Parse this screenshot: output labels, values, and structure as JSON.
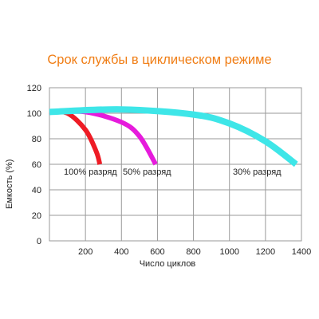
{
  "chart_data": {
    "type": "line",
    "title": "Срок службы в циклическом режиме",
    "xlabel": "Число циклов",
    "ylabel": "Емкость (%)",
    "xlim": [
      0,
      1400
    ],
    "ylim": [
      0,
      120
    ],
    "xticks": [
      200,
      400,
      600,
      800,
      1000,
      1200,
      1400
    ],
    "yticks": [
      0,
      20,
      40,
      60,
      80,
      100,
      120
    ],
    "grid": true,
    "series": [
      {
        "name": "100% разряд",
        "color": "#ee1c25",
        "x": [
          0,
          100,
          200,
          260,
          280
        ],
        "y": [
          101,
          100,
          87,
          70,
          60
        ]
      },
      {
        "name": "50% разряд",
        "color": "#e61bdc",
        "x": [
          0,
          200,
          400,
          500,
          590
        ],
        "y": [
          101,
          101,
          93,
          82,
          60
        ]
      },
      {
        "name": "30% разряд",
        "color": "#3ee6e8",
        "x": [
          0,
          400,
          800,
          1000,
          1200,
          1370
        ],
        "y": [
          101,
          103,
          99,
          92,
          78,
          60
        ]
      }
    ],
    "annotations": [
      "100% разряд",
      "50% разряд",
      "30% разряд"
    ]
  }
}
